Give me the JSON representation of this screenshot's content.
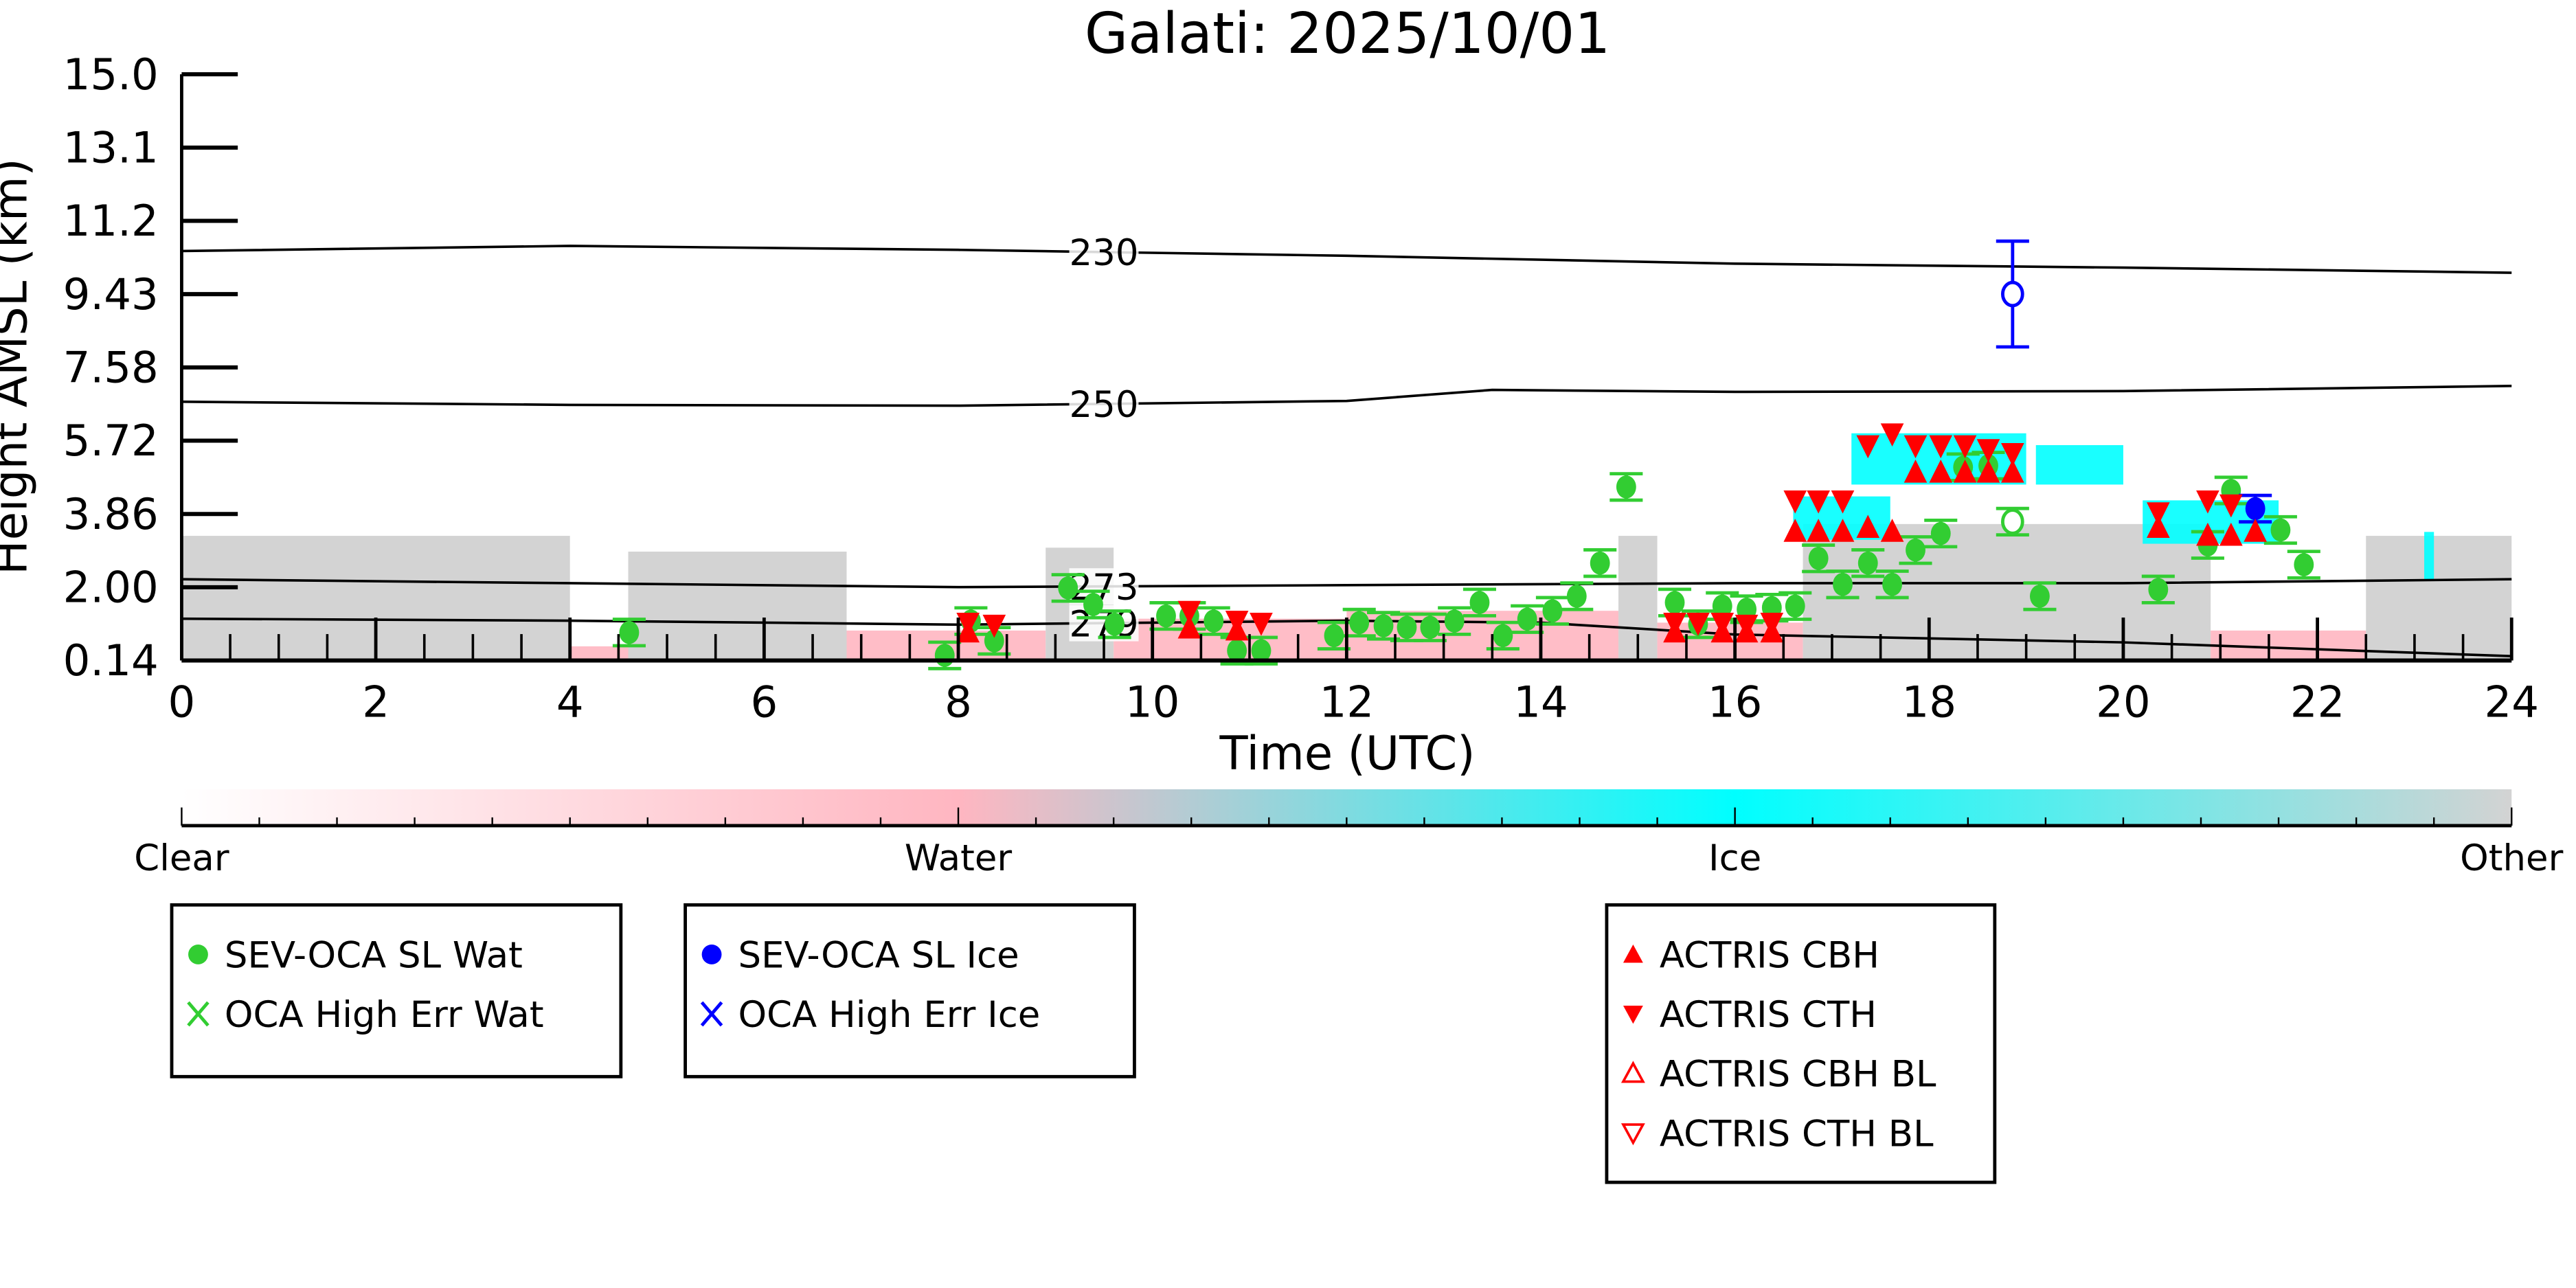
{
  "chart_data": {
    "type": "scatter",
    "title": "Galati: 2025/10/01",
    "xlabel": "Time (UTC)",
    "ylabel": "Height AMSL (km)",
    "xlim": [
      0,
      24
    ],
    "ylim": [
      0.14,
      15.0
    ],
    "xticks": [
      "0",
      "2",
      "4",
      "6",
      "8",
      "10",
      "12",
      "14",
      "16",
      "18",
      "20",
      "22",
      "24"
    ],
    "yticks": [
      "0.14",
      "2.00",
      "3.86",
      "5.72",
      "7.58",
      "9.43",
      "11.2",
      "13.1",
      "15.0"
    ],
    "colorbar": {
      "labels": [
        "Clear",
        "Water",
        "Ice",
        "Other"
      ],
      "colors": [
        "#ffffff",
        "#ffb6c1",
        "#00ffff",
        "#d3d3d3"
      ]
    },
    "contours": [
      {
        "label": "230",
        "x": [
          0,
          4,
          8,
          12,
          16,
          20,
          24
        ],
        "y": [
          10.52,
          10.65,
          10.55,
          10.4,
          10.2,
          10.1,
          9.97
        ],
        "label_at": 9.5
      },
      {
        "label": "250",
        "x": [
          0,
          4,
          8,
          12,
          13.5,
          16,
          20,
          24
        ],
        "y": [
          6.7,
          6.62,
          6.6,
          6.72,
          7.0,
          6.95,
          6.97,
          7.1
        ],
        "label_at": 9.5
      },
      {
        "label": "273",
        "x": [
          0,
          4,
          8,
          12,
          16,
          20,
          24
        ],
        "y": [
          2.2,
          2.1,
          2.0,
          2.05,
          2.1,
          2.1,
          2.2
        ],
        "label_at": 9.5
      },
      {
        "label": "279",
        "x": [
          0,
          4,
          8,
          10,
          12,
          14,
          16,
          20,
          24
        ],
        "y": [
          1.2,
          1.15,
          1.05,
          1.1,
          1.15,
          1.1,
          0.8,
          0.6,
          0.25
        ],
        "label_at": 9.5
      }
    ],
    "classification_regions": [
      {
        "class": "Other",
        "t0": 0,
        "t1": 4.0,
        "h0": 0.14,
        "h1": 3.3
      },
      {
        "class": "Other",
        "t0": 4.6,
        "t1": 6.85,
        "h0": 0.14,
        "h1": 2.9
      },
      {
        "class": "Water",
        "t0": 4.0,
        "t1": 4.6,
        "h0": 0.14,
        "h1": 0.5
      },
      {
        "class": "Water",
        "t0": 6.85,
        "t1": 8.9,
        "h0": 0.14,
        "h1": 0.9
      },
      {
        "class": "Other",
        "t0": 8.9,
        "t1": 9.6,
        "h0": 0.14,
        "h1": 3.0
      },
      {
        "class": "Water",
        "t0": 9.6,
        "t1": 12.0,
        "h0": 0.14,
        "h1": 1.2
      },
      {
        "class": "Water",
        "t0": 12.0,
        "t1": 14.8,
        "h0": 0.14,
        "h1": 1.4
      },
      {
        "class": "Other",
        "t0": 14.8,
        "t1": 15.2,
        "h0": 0.14,
        "h1": 3.3
      },
      {
        "class": "Water",
        "t0": 15.2,
        "t1": 16.7,
        "h0": 0.14,
        "h1": 1.1
      },
      {
        "class": "Other",
        "t0": 16.7,
        "t1": 20.9,
        "h0": 0.14,
        "h1": 3.6
      },
      {
        "class": "Ice",
        "t0": 16.6,
        "t1": 17.6,
        "h0": 3.2,
        "h1": 4.3
      },
      {
        "class": "Ice",
        "t0": 17.2,
        "t1": 19.0,
        "h0": 4.6,
        "h1": 5.9
      },
      {
        "class": "Ice",
        "t0": 19.1,
        "t1": 20.0,
        "h0": 4.6,
        "h1": 5.6
      },
      {
        "class": "Ice",
        "t0": 20.2,
        "t1": 21.6,
        "h0": 3.1,
        "h1": 4.2
      },
      {
        "class": "Water",
        "t0": 20.9,
        "t1": 22.5,
        "h0": 0.14,
        "h1": 0.9
      },
      {
        "class": "Other",
        "t0": 22.5,
        "t1": 24,
        "h0": 0.14,
        "h1": 3.3
      },
      {
        "class": "Ice",
        "t0": 23.1,
        "t1": 23.2,
        "h0": 2.2,
        "h1": 3.4
      }
    ],
    "series": [
      {
        "name": "SEV-OCA SL Wat",
        "color": "#32cd32",
        "marker": "filled-circle",
        "points": [
          [
            4.61,
            0.85
          ],
          [
            7.86,
            0.27
          ],
          [
            8.13,
            1.14
          ],
          [
            8.37,
            0.64
          ],
          [
            9.13,
            1.98
          ],
          [
            9.39,
            1.56
          ],
          [
            9.61,
            1.06
          ],
          [
            10.14,
            1.27
          ],
          [
            10.38,
            1.27
          ],
          [
            10.63,
            1.14
          ],
          [
            10.87,
            0.39
          ],
          [
            11.12,
            0.39
          ],
          [
            11.87,
            0.77
          ],
          [
            12.13,
            1.1
          ],
          [
            12.38,
            1.02
          ],
          [
            12.62,
            0.98
          ],
          [
            12.86,
            0.98
          ],
          [
            13.11,
            1.14
          ],
          [
            13.37,
            1.61
          ],
          [
            13.61,
            0.77
          ],
          [
            13.86,
            1.19
          ],
          [
            14.12,
            1.4
          ],
          [
            14.37,
            1.77
          ],
          [
            14.61,
            2.61
          ],
          [
            14.88,
            4.54
          ],
          [
            15.38,
            1.61
          ],
          [
            15.62,
            1.06
          ],
          [
            15.87,
            1.52
          ],
          [
            16.12,
            1.44
          ],
          [
            16.38,
            1.48
          ],
          [
            16.62,
            1.52
          ],
          [
            16.86,
            2.73
          ],
          [
            17.11,
            2.07
          ],
          [
            17.37,
            2.61
          ],
          [
            17.62,
            2.07
          ],
          [
            17.86,
            2.94
          ],
          [
            18.12,
            3.36
          ],
          [
            18.35,
            5.04
          ],
          [
            18.61,
            5.08
          ],
          [
            19.14,
            1.77
          ],
          [
            20.36,
            1.94
          ],
          [
            20.87,
            3.07
          ],
          [
            21.11,
            4.45
          ],
          [
            21.62,
            3.45
          ],
          [
            21.86,
            2.57
          ]
        ]
      },
      {
        "name": "SEV-OCA SL Wat (open)",
        "color": "#32cd32",
        "marker": "open-circle",
        "points": [
          [
            18.86,
            3.66
          ]
        ]
      },
      {
        "name": "SEV-OCA SL Ice",
        "color": "#0000ff",
        "marker": "filled-circle",
        "points": [
          [
            21.36,
            3.99
          ]
        ]
      },
      {
        "name": "SEV-OCA SL Ice (open)",
        "color": "#0000ff",
        "marker": "open-circle",
        "points": [
          [
            18.86,
            9.43
          ]
        ],
        "errors": [
          [
            8.09,
            10.77
          ]
        ]
      },
      {
        "name": "ACTRIS CBH",
        "color": "#ff0000",
        "marker": "triangle-up",
        "points": [
          [
            8.1,
            0.85
          ],
          [
            10.38,
            0.95
          ],
          [
            10.87,
            0.9
          ],
          [
            15.38,
            0.85
          ],
          [
            15.87,
            0.85
          ],
          [
            16.12,
            0.85
          ],
          [
            16.38,
            0.85
          ],
          [
            16.62,
            3.4
          ],
          [
            16.86,
            3.4
          ],
          [
            17.11,
            3.4
          ],
          [
            17.37,
            3.5
          ],
          [
            17.62,
            3.4
          ],
          [
            17.86,
            4.9
          ],
          [
            18.12,
            4.9
          ],
          [
            18.37,
            4.9
          ],
          [
            18.61,
            4.9
          ],
          [
            18.86,
            4.9
          ],
          [
            20.36,
            3.5
          ],
          [
            20.87,
            3.3
          ],
          [
            21.11,
            3.3
          ],
          [
            21.36,
            3.4
          ]
        ]
      },
      {
        "name": "ACTRIS CTH",
        "color": "#ff0000",
        "marker": "triangle-down",
        "points": [
          [
            8.1,
            1.1
          ],
          [
            8.37,
            1.05
          ],
          [
            10.38,
            1.4
          ],
          [
            10.87,
            1.15
          ],
          [
            11.12,
            1.1
          ],
          [
            15.38,
            1.1
          ],
          [
            15.62,
            1.1
          ],
          [
            15.87,
            1.1
          ],
          [
            16.12,
            1.05
          ],
          [
            16.38,
            1.1
          ],
          [
            16.62,
            4.2
          ],
          [
            16.86,
            4.2
          ],
          [
            17.11,
            4.2
          ],
          [
            17.37,
            5.6
          ],
          [
            17.62,
            5.9
          ],
          [
            17.86,
            5.6
          ],
          [
            18.12,
            5.6
          ],
          [
            18.37,
            5.6
          ],
          [
            18.61,
            5.5
          ],
          [
            18.86,
            5.4
          ],
          [
            20.36,
            3.9
          ],
          [
            20.87,
            4.2
          ],
          [
            21.11,
            4.1
          ]
        ]
      }
    ],
    "legends": [
      {
        "entries": [
          {
            "label": "SEV-OCA SL Wat",
            "symbol": "filled-circle",
            "color": "#32cd32"
          },
          {
            "label": "OCA High Err Wat",
            "symbol": "x",
            "color": "#32cd32"
          }
        ]
      },
      {
        "entries": [
          {
            "label": "SEV-OCA SL Ice",
            "symbol": "filled-circle",
            "color": "#0000ff"
          },
          {
            "label": "OCA High Err Ice",
            "symbol": "x",
            "color": "#0000ff"
          }
        ]
      },
      {
        "entries": [
          {
            "label": "ACTRIS CBH",
            "symbol": "triangle-up",
            "color": "#ff0000"
          },
          {
            "label": "ACTRIS CTH",
            "symbol": "triangle-down",
            "color": "#ff0000"
          },
          {
            "label": "ACTRIS CBH BL",
            "symbol": "open-triangle-up",
            "color": "#ff0000"
          },
          {
            "label": "ACTRIS CTH BL",
            "symbol": "open-triangle-down",
            "color": "#ff0000"
          }
        ]
      }
    ]
  }
}
